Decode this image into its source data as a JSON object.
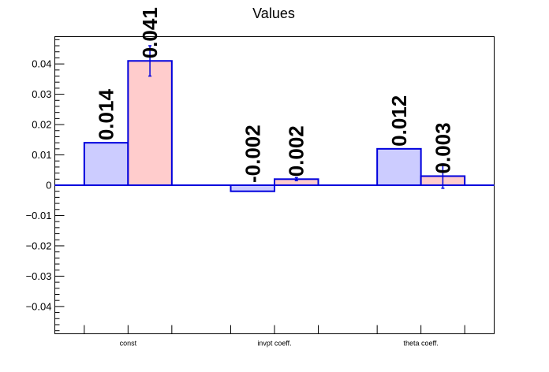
{
  "chart_data": {
    "type": "bar",
    "title": "Values",
    "categories": [
      "const",
      "invpt coeff.",
      "theta coeff."
    ],
    "series": [
      {
        "values": [
          0.014,
          -0.002,
          0.012
        ],
        "value_labels": [
          "0.014",
          "-0.002",
          "0.012"
        ],
        "fill": "#ccccff",
        "stroke": "#0000dd"
      },
      {
        "values": [
          0.041,
          0.002,
          0.003
        ],
        "value_labels": [
          "0.041",
          "0.002",
          "0.003"
        ],
        "errors": [
          0.005,
          0.0005,
          0.004
        ],
        "fill": "#ffcccc",
        "stroke": "#0000dd"
      }
    ],
    "yticks": [
      0.04,
      0.03,
      0.02,
      0.01,
      0,
      -0.01,
      -0.02,
      -0.03,
      -0.04
    ],
    "ytick_labels": [
      "0.04",
      "0.03",
      "0.02",
      "0.01",
      "0",
      "−0.01",
      "−0.02",
      "−0.03",
      "−0.04"
    ],
    "ylim": [
      -0.049,
      0.049
    ],
    "xlabel": "",
    "ylabel": "",
    "zero_line": true,
    "grid": false,
    "legend": "none"
  }
}
